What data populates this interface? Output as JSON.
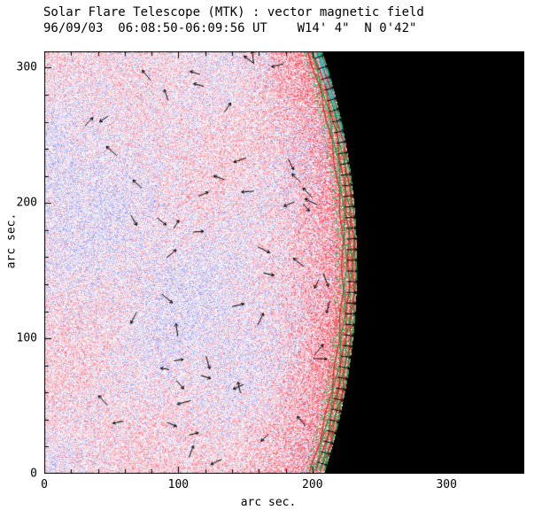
{
  "header": {
    "line1": "Solar Flare Telescope (MTK) : vector magnetic field",
    "line2": "96/09/03  06:08:50-06:09:56 UT    W14' 4\"  N 0'42\""
  },
  "chart_data": {
    "type": "heatmap",
    "title": "Solar Flare Telescope (MTK) : vector magnetic field",
    "subtitle": "96/09/03  06:08:50-06:09:56 UT    W14' 4\"  N 0'42\"",
    "xlabel": "arc sec.",
    "ylabel": "arc sec.",
    "xlim": [
      0,
      358
    ],
    "ylim": [
      0,
      312
    ],
    "x_ticks": [
      0,
      100,
      200,
      300
    ],
    "y_ticks": [
      0,
      100,
      200,
      300
    ],
    "minor_tick_step": 20,
    "grid": false,
    "legend": false,
    "field": {
      "description": "Speckled line-of-sight magnetogram: red = positive polarity, blue = negative polarity on white; saturation increases strongly toward the west solar limb",
      "positive_color": "#ff5a50",
      "negative_color": "#8c96e6",
      "background": "#ffffff"
    },
    "limb": {
      "description": "West solar limb arc; region beyond the limb is black sky",
      "center_arcsec": [
        -262,
        154
      ],
      "radius_arcsec": 495,
      "sky_color": "#000000",
      "contour_colors": [
        "#00a844",
        "#d42a1e",
        "#35b8cc"
      ],
      "band_width_arcsec": 12
    },
    "vectors": {
      "description": "Short black arrows showing transverse magnetic field direction; a regular column of outward radial arrows lies along the limb band",
      "color": "#000000",
      "count_field": 56,
      "count_limb": 38
    },
    "seed": 1234
  }
}
